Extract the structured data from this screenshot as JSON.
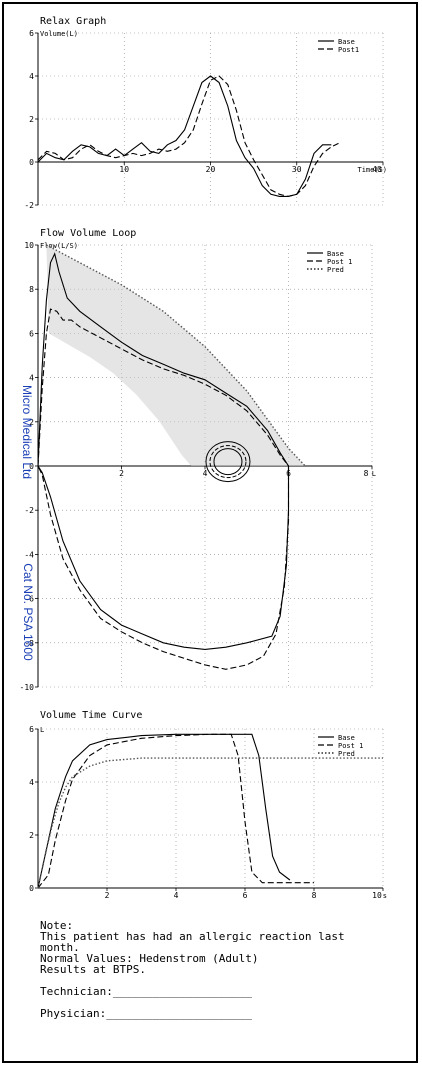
{
  "side_labels": {
    "company": "Micro Medical Ltd",
    "catalog": "Cat No. PSA 1600"
  },
  "notes": {
    "heading": "Note:",
    "line1": "This patient has had an allergic reaction last",
    "line2": "month.",
    "line3": "Normal Values: Hedenstrom (Adult)",
    "line4": "Results at BTPS.",
    "technician": "Technician:_____________________",
    "physician": "Physician:______________________"
  },
  "chart_data": [
    {
      "type": "line",
      "title": "Relax Graph",
      "ylabel": "Volume(L)",
      "xlabel": "Time(S)",
      "xlim": [
        0,
        40
      ],
      "ylim": [
        -2,
        6
      ],
      "x_ticks": [
        10,
        20,
        30,
        40
      ],
      "y_ticks": [
        -2,
        0,
        2,
        4,
        6
      ],
      "grid": true,
      "legend": "top-right",
      "series": [
        {
          "name": "Base",
          "style": "solid",
          "points": [
            [
              0,
              0
            ],
            [
              1,
              0.4
            ],
            [
              2,
              0.2
            ],
            [
              3,
              0.1
            ],
            [
              4,
              0.5
            ],
            [
              5,
              0.8
            ],
            [
              6,
              0.7
            ],
            [
              7,
              0.4
            ],
            [
              8,
              0.3
            ],
            [
              9,
              0.6
            ],
            [
              10,
              0.3
            ],
            [
              11,
              0.6
            ],
            [
              12,
              0.9
            ],
            [
              13,
              0.5
            ],
            [
              14,
              0.4
            ],
            [
              15,
              0.8
            ],
            [
              16,
              1.0
            ],
            [
              17,
              1.5
            ],
            [
              18,
              2.6
            ],
            [
              19,
              3.7
            ],
            [
              20,
              4.0
            ],
            [
              21,
              3.7
            ],
            [
              22,
              2.6
            ],
            [
              23,
              1.0
            ],
            [
              24,
              0.2
            ],
            [
              25,
              -0.3
            ],
            [
              26,
              -1.1
            ],
            [
              27,
              -1.5
            ],
            [
              28,
              -1.6
            ],
            [
              29,
              -1.6
            ],
            [
              30,
              -1.5
            ],
            [
              31,
              -0.8
            ],
            [
              32,
              0.4
            ],
            [
              33,
              0.8
            ],
            [
              34,
              0.8
            ]
          ]
        },
        {
          "name": "Post1",
          "style": "dashed",
          "points": [
            [
              0,
              0.1
            ],
            [
              1,
              0.5
            ],
            [
              2,
              0.4
            ],
            [
              3,
              0.1
            ],
            [
              4,
              0.2
            ],
            [
              5,
              0.6
            ],
            [
              6,
              0.8
            ],
            [
              7,
              0.5
            ],
            [
              8,
              0.3
            ],
            [
              9,
              0.2
            ],
            [
              10,
              0.3
            ],
            [
              11,
              0.4
            ],
            [
              12,
              0.3
            ],
            [
              13,
              0.4
            ],
            [
              14,
              0.6
            ],
            [
              15,
              0.5
            ],
            [
              16,
              0.6
            ],
            [
              17,
              0.9
            ],
            [
              18,
              1.5
            ],
            [
              19,
              2.7
            ],
            [
              20,
              3.8
            ],
            [
              21,
              4.0
            ],
            [
              22,
              3.6
            ],
            [
              23,
              2.4
            ],
            [
              24,
              0.9
            ],
            [
              25,
              0.1
            ],
            [
              26,
              -0.6
            ],
            [
              27,
              -1.3
            ],
            [
              28,
              -1.5
            ],
            [
              29,
              -1.6
            ],
            [
              30,
              -1.5
            ],
            [
              31,
              -1.1
            ],
            [
              32,
              -0.2
            ],
            [
              33,
              0.4
            ],
            [
              34,
              0.7
            ],
            [
              35,
              0.9
            ]
          ]
        }
      ]
    },
    {
      "type": "line",
      "title": "Flow Volume Loop",
      "ylabel": "Flow(L/S)",
      "xlabel": "L",
      "xlim": [
        0,
        8
      ],
      "ylim": [
        -10,
        10
      ],
      "x_ticks": [
        2,
        4,
        6,
        8
      ],
      "y_ticks": [
        -10,
        -8,
        -6,
        -4,
        -2,
        0,
        2,
        4,
        6,
        8,
        10
      ],
      "grid": true,
      "legend": "top-right",
      "series": [
        {
          "name": "Base",
          "style": "solid",
          "points": [
            [
              0,
              0
            ],
            [
              0.1,
              4.5
            ],
            [
              0.2,
              7.5
            ],
            [
              0.3,
              9.2
            ],
            [
              0.4,
              9.6
            ],
            [
              0.5,
              8.8
            ],
            [
              0.7,
              7.6
            ],
            [
              1,
              7.0
            ],
            [
              1.5,
              6.3
            ],
            [
              2,
              5.6
            ],
            [
              2.5,
              5.0
            ],
            [
              3,
              4.6
            ],
            [
              3.5,
              4.2
            ],
            [
              4,
              3.9
            ],
            [
              4.5,
              3.3
            ],
            [
              5,
              2.7
            ],
            [
              5.5,
              1.6
            ],
            [
              5.8,
              0.6
            ],
            [
              6,
              0
            ],
            [
              6,
              -2
            ],
            [
              5.95,
              -4.5
            ],
            [
              5.8,
              -6.8
            ],
            [
              5.6,
              -7.7
            ],
            [
              5,
              -8.0
            ],
            [
              4.5,
              -8.2
            ],
            [
              4,
              -8.3
            ],
            [
              3.5,
              -8.2
            ],
            [
              3,
              -8.0
            ],
            [
              2.5,
              -7.6
            ],
            [
              2,
              -7.2
            ],
            [
              1.5,
              -6.5
            ],
            [
              1,
              -5.2
            ],
            [
              0.6,
              -3.4
            ],
            [
              0.3,
              -1.4
            ],
            [
              0.1,
              -0.3
            ],
            [
              0,
              0
            ]
          ]
        },
        {
          "name": "Post 1",
          "style": "dashed",
          "points": [
            [
              0,
              0
            ],
            [
              0.1,
              3.5
            ],
            [
              0.2,
              6.0
            ],
            [
              0.3,
              7.1
            ],
            [
              0.45,
              7.0
            ],
            [
              0.6,
              6.6
            ],
            [
              0.8,
              6.6
            ],
            [
              1,
              6.3
            ],
            [
              1.5,
              5.8
            ],
            [
              2,
              5.3
            ],
            [
              2.5,
              4.8
            ],
            [
              3,
              4.4
            ],
            [
              3.5,
              4.1
            ],
            [
              4,
              3.7
            ],
            [
              4.5,
              3.2
            ],
            [
              5,
              2.5
            ],
            [
              5.5,
              1.4
            ],
            [
              5.8,
              0.5
            ],
            [
              6,
              0
            ],
            [
              6,
              -2.5
            ],
            [
              5.9,
              -5.5
            ],
            [
              5.7,
              -7.6
            ],
            [
              5.4,
              -8.6
            ],
            [
              5,
              -9.0
            ],
            [
              4.5,
              -9.2
            ],
            [
              4,
              -9.0
            ],
            [
              3.5,
              -8.7
            ],
            [
              3,
              -8.4
            ],
            [
              2.5,
              -8.0
            ],
            [
              2,
              -7.5
            ],
            [
              1.5,
              -6.9
            ],
            [
              1,
              -5.6
            ],
            [
              0.6,
              -4.2
            ],
            [
              0.3,
              -2.2
            ],
            [
              0.1,
              -0.4
            ],
            [
              0,
              0
            ]
          ]
        },
        {
          "name": "Pred",
          "style": "dotted",
          "points": [
            [
              0.2,
              10
            ],
            [
              1,
              9.2
            ],
            [
              2,
              8.2
            ],
            [
              3,
              7.0
            ],
            [
              4,
              5.4
            ],
            [
              5,
              3.4
            ],
            [
              6,
              0.8
            ],
            [
              6.4,
              0
            ]
          ]
        }
      ]
    },
    {
      "type": "line",
      "title": "Volume Time Curve",
      "ylabel": "L",
      "xlabel": "s",
      "xlim": [
        0,
        10
      ],
      "ylim": [
        0,
        6
      ],
      "x_ticks": [
        2,
        4,
        6,
        8,
        10
      ],
      "y_ticks": [
        0,
        2,
        4,
        6
      ],
      "grid": true,
      "legend": "top-right",
      "series": [
        {
          "name": "Base",
          "style": "solid",
          "points": [
            [
              0,
              0
            ],
            [
              0.2,
              1.2
            ],
            [
              0.5,
              3.0
            ],
            [
              0.8,
              4.2
            ],
            [
              1,
              4.8
            ],
            [
              1.5,
              5.4
            ],
            [
              2,
              5.6
            ],
            [
              3,
              5.75
            ],
            [
              4,
              5.8
            ],
            [
              5,
              5.8
            ],
            [
              6.2,
              5.8
            ],
            [
              6.4,
              5.0
            ],
            [
              6.6,
              3.0
            ],
            [
              6.8,
              1.2
            ],
            [
              7,
              0.6
            ],
            [
              7.3,
              0.3
            ]
          ]
        },
        {
          "name": "Post 1",
          "style": "dashed",
          "points": [
            [
              0,
              0
            ],
            [
              0.3,
              0.5
            ],
            [
              0.5,
              1.8
            ],
            [
              0.8,
              3.3
            ],
            [
              1,
              4.1
            ],
            [
              1.5,
              5.0
            ],
            [
              2,
              5.4
            ],
            [
              3,
              5.65
            ],
            [
              4,
              5.75
            ],
            [
              5,
              5.8
            ],
            [
              5.6,
              5.8
            ],
            [
              5.8,
              5.0
            ],
            [
              6,
              2.5
            ],
            [
              6.2,
              0.6
            ],
            [
              6.5,
              0.2
            ],
            [
              8,
              0.2
            ]
          ]
        },
        {
          "name": "Pred",
          "style": "dotted",
          "points": [
            [
              0,
              0
            ],
            [
              0.2,
              1.2
            ],
            [
              0.4,
              2.3
            ],
            [
              0.6,
              3.2
            ],
            [
              0.8,
              3.8
            ],
            [
              1,
              4.2
            ],
            [
              1.5,
              4.6
            ],
            [
              2,
              4.8
            ],
            [
              2.5,
              4.85
            ],
            [
              3,
              4.9
            ],
            [
              4,
              4.9
            ],
            [
              10,
              4.9
            ]
          ]
        }
      ]
    }
  ]
}
